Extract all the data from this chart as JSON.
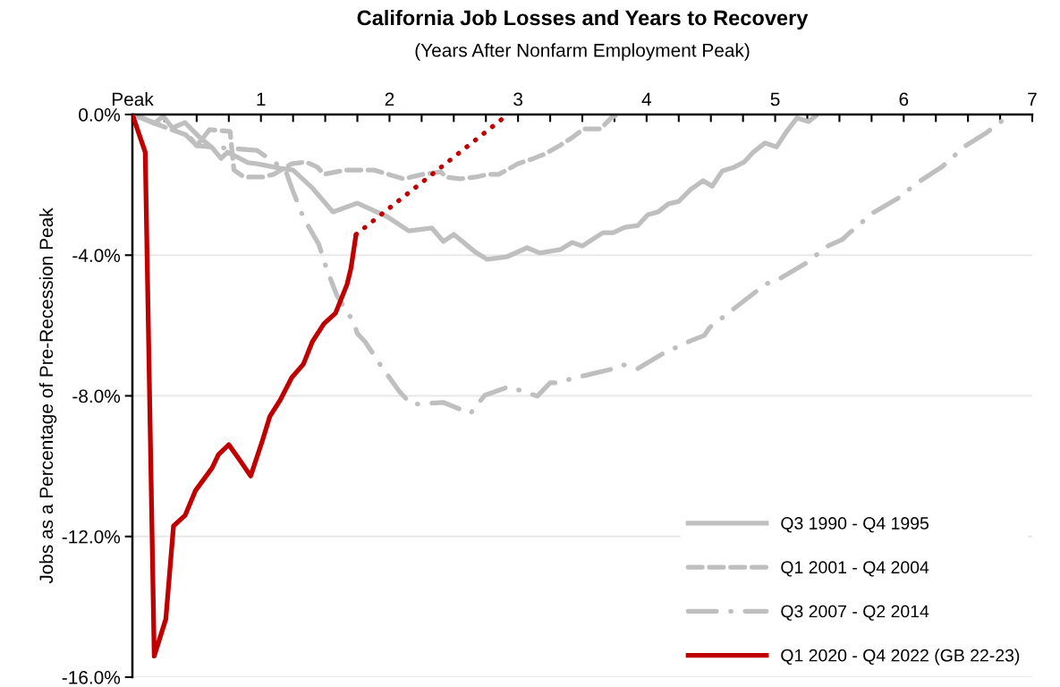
{
  "chart_data": {
    "type": "line",
    "title": "California Job Losses and Years to Recovery",
    "subtitle": "(Years After Nonfarm Employment Peak)",
    "ylabel": "Jobs as a Percentage of Pre-Recession Peak",
    "xlim": [
      0,
      7
    ],
    "xticks": [
      {
        "value": 0,
        "label": "Peak"
      },
      {
        "value": 0.25,
        "label": null
      },
      {
        "value": 0.5,
        "label": null
      },
      {
        "value": 0.75,
        "label": null
      },
      1,
      {
        "value": 1.25,
        "label": null
      },
      {
        "value": 1.5,
        "label": null
      },
      {
        "value": 1.75,
        "label": null
      },
      2,
      {
        "value": 2.25,
        "label": null
      },
      {
        "value": 2.5,
        "label": null
      },
      {
        "value": 2.75,
        "label": null
      },
      3,
      {
        "value": 3.25,
        "label": null
      },
      {
        "value": 3.5,
        "label": null
      },
      {
        "value": 3.75,
        "label": null
      },
      4,
      {
        "value": 4.25,
        "label": null
      },
      {
        "value": 4.5,
        "label": null
      },
      {
        "value": 4.75,
        "label": null
      },
      5,
      {
        "value": 5.25,
        "label": null
      },
      {
        "value": 5.5,
        "label": null
      },
      {
        "value": 5.75,
        "label": null
      },
      6,
      {
        "value": 6.25,
        "label": null
      },
      {
        "value": 6.5,
        "label": null
      },
      {
        "value": 6.75,
        "label": null
      },
      7
    ],
    "ylim": [
      -16,
      0
    ],
    "yticks": [
      {
        "value": 0,
        "label": "0.0%"
      },
      {
        "value": -4,
        "label": "-4.0%"
      },
      {
        "value": -8,
        "label": "-8.0%"
      },
      {
        "value": -12,
        "label": "-12.0%"
      },
      {
        "value": -16,
        "label": "-16.0%"
      }
    ],
    "grid": "y",
    "legend": "bottom right",
    "marker": "none",
    "series": [
      {
        "name": "Q3 1990 - Q4 1995",
        "color": "#bfbfbf",
        "line_style": "solid",
        "x": [
          0,
          0.17,
          0.24,
          0.31,
          0.41,
          0.52,
          0.62,
          0.69,
          0.74,
          0.9,
          0.97,
          1.15,
          1.25,
          1.4,
          1.56,
          1.75,
          1.98,
          2.15,
          2.33,
          2.42,
          2.5,
          2.67,
          2.76,
          2.91,
          3.07,
          3.17,
          3.33,
          3.42,
          3.5,
          3.66,
          3.74,
          3.83,
          3.93,
          4.01,
          4.09,
          4.17,
          4.25,
          4.34,
          4.44,
          4.51,
          4.59,
          4.68,
          4.76,
          4.83,
          4.92,
          5.01,
          5.09,
          5.17,
          5.26,
          5.33
        ],
        "values": [
          0,
          -0.25,
          -0.05,
          -0.38,
          -0.23,
          -0.64,
          -0.94,
          -1.25,
          -1.07,
          -1.37,
          -1.4,
          -1.53,
          -1.58,
          -2.09,
          -2.77,
          -2.52,
          -2.9,
          -3.31,
          -3.23,
          -3.61,
          -3.41,
          -3.92,
          -4.12,
          -4.05,
          -3.79,
          -3.94,
          -3.84,
          -3.64,
          -3.74,
          -3.36,
          -3.36,
          -3.21,
          -3.16,
          -2.85,
          -2.77,
          -2.54,
          -2.47,
          -2.14,
          -1.88,
          -2.04,
          -1.6,
          -1.5,
          -1.35,
          -1.07,
          -0.81,
          -0.92,
          -0.48,
          -0.1,
          -0.2,
          0
        ]
      },
      {
        "name": "Q1 2001 - Q4 2004",
        "color": "#bfbfbf",
        "line_style": "dashed",
        "x": [
          0,
          0.08,
          0.17,
          0.44,
          0.5,
          0.6,
          0.76,
          0.79,
          0.87,
          1.01,
          1.1,
          1.24,
          1.35,
          1.44,
          1.49,
          1.66,
          1.77,
          1.88,
          1.99,
          2.11,
          2.26,
          2.4,
          2.44,
          2.55,
          2.67,
          2.77,
          2.85,
          3.0,
          3.12,
          3.21,
          3.33,
          3.42,
          3.51,
          3.64,
          3.73,
          3.78
        ],
        "values": [
          0,
          -0.1,
          -0.25,
          -0.61,
          -0.89,
          -0.43,
          -0.48,
          -1.58,
          -1.78,
          -1.78,
          -1.7,
          -1.4,
          -1.35,
          -1.5,
          -1.7,
          -1.58,
          -1.58,
          -1.58,
          -1.7,
          -1.83,
          -1.7,
          -1.63,
          -1.78,
          -1.83,
          -1.78,
          -1.7,
          -1.7,
          -1.4,
          -1.25,
          -1.12,
          -0.87,
          -0.66,
          -0.41,
          -0.41,
          -0.08,
          0
        ]
      },
      {
        "name": "Q3 2007 - Q2 2014",
        "color": "#bfbfbf",
        "line_style": "dashdot",
        "x": [
          0,
          0.41,
          0.5,
          0.97,
          1.19,
          1.24,
          1.33,
          1.45,
          1.51,
          1.59,
          1.72,
          1.75,
          1.81,
          1.94,
          2.08,
          2.17,
          2.42,
          2.63,
          2.74,
          2.93,
          3.15,
          3.25,
          3.29,
          3.51,
          3.74,
          3.82,
          3.93,
          4.13,
          4.34,
          4.45,
          4.49,
          4.68,
          4.86,
          4.92,
          5.03,
          5.23,
          5.41,
          5.52,
          5.58,
          5.76,
          5.96,
          6.11,
          6.3,
          6.48,
          6.64,
          6.83
        ],
        "values": [
          0,
          -0.56,
          -0.89,
          -1.02,
          -1.58,
          -2.09,
          -2.93,
          -3.69,
          -4.38,
          -5.14,
          -5.9,
          -6.23,
          -6.46,
          -7.18,
          -7.89,
          -8.24,
          -8.19,
          -8.5,
          -7.99,
          -7.74,
          -8.01,
          -7.63,
          -7.63,
          -7.43,
          -7.23,
          -7.12,
          -7.23,
          -6.79,
          -6.44,
          -6.28,
          -6.06,
          -5.52,
          -5.01,
          -4.83,
          -4.68,
          -4.25,
          -3.74,
          -3.56,
          -3.36,
          -2.8,
          -2.37,
          -1.93,
          -1.48,
          -0.89,
          -0.53,
          0
        ]
      },
      {
        "name": "Q1 2020 - Q4 2022 (GB 22-23)",
        "color": "#c00000",
        "line_style": "solid",
        "x": [
          0,
          0.1,
          0.17,
          0.26,
          0.32,
          0.41,
          0.49,
          0.62,
          0.67,
          0.75,
          0.83,
          0.92,
          1.01,
          1.07,
          1.15,
          1.24,
          1.33,
          1.4,
          1.49,
          1.58,
          1.67,
          1.7,
          1.74
        ],
        "values": [
          0,
          -1.07,
          -15.4,
          -14.35,
          -11.7,
          -11.4,
          -10.7,
          -10.05,
          -9.67,
          -9.39,
          -9.8,
          -10.28,
          -9.29,
          -8.58,
          -8.12,
          -7.48,
          -7.1,
          -6.46,
          -5.95,
          -5.65,
          -4.83,
          -4.38,
          -3.41
        ]
      },
      {
        "color": "#c00000",
        "line_style": "dotted",
        "x": [
          1.74,
          2.92
        ],
        "values": [
          -3.41,
          0
        ]
      }
    ]
  }
}
